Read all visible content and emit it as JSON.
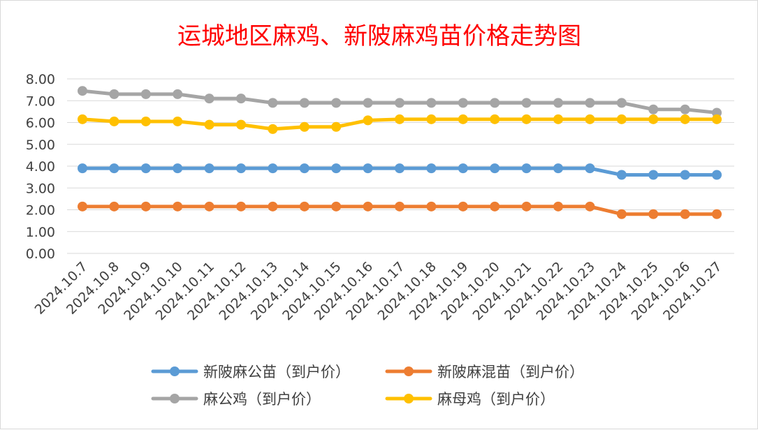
{
  "chart_data": {
    "type": "line",
    "title": "运城地区麻鸡、新陂麻鸡苗价格走势图",
    "xlabel": "",
    "ylabel": "",
    "ylim": [
      0,
      8
    ],
    "yticks": [
      "0.00",
      "1.00",
      "2.00",
      "3.00",
      "4.00",
      "5.00",
      "6.00",
      "7.00",
      "8.00"
    ],
    "grid": true,
    "legend_position": "bottom",
    "categories": [
      "2024.10.7",
      "2024.10.8",
      "2024.10.9",
      "2024.10.10",
      "2024.10.11",
      "2024.10.12",
      "2024.10.13",
      "2024.10.14",
      "2024.10.15",
      "2024.10.16",
      "2024.10.17",
      "2024.10.18",
      "2024.10.19",
      "2024.10.20",
      "2024.10.21",
      "2024.10.22",
      "2024.10.23",
      "2024.10.24",
      "2024.10.25",
      "2024.10.26",
      "2024.10.27"
    ],
    "series": [
      {
        "name": "新陂麻公苗（到户价）",
        "color": "#5b9bd5",
        "values": [
          3.9,
          3.9,
          3.9,
          3.9,
          3.9,
          3.9,
          3.9,
          3.9,
          3.9,
          3.9,
          3.9,
          3.9,
          3.9,
          3.9,
          3.9,
          3.9,
          3.9,
          3.6,
          3.6,
          3.6,
          3.6
        ]
      },
      {
        "name": "新陂麻混苗（到户价）",
        "color": "#ed7d31",
        "values": [
          2.15,
          2.15,
          2.15,
          2.15,
          2.15,
          2.15,
          2.15,
          2.15,
          2.15,
          2.15,
          2.15,
          2.15,
          2.15,
          2.15,
          2.15,
          2.15,
          2.15,
          1.8,
          1.8,
          1.8,
          1.8
        ]
      },
      {
        "name": "麻公鸡（到户价）",
        "color": "#a5a5a5",
        "values": [
          7.45,
          7.3,
          7.3,
          7.3,
          7.1,
          7.1,
          6.9,
          6.9,
          6.9,
          6.9,
          6.9,
          6.9,
          6.9,
          6.9,
          6.9,
          6.9,
          6.9,
          6.9,
          6.6,
          6.6,
          6.45
        ]
      },
      {
        "name": "麻母鸡（到户价）",
        "color": "#ffc000",
        "values": [
          6.15,
          6.05,
          6.05,
          6.05,
          5.9,
          5.9,
          5.7,
          5.8,
          5.8,
          6.1,
          6.15,
          6.15,
          6.15,
          6.15,
          6.15,
          6.15,
          6.15,
          6.15,
          6.15,
          6.15,
          6.15
        ]
      }
    ]
  }
}
